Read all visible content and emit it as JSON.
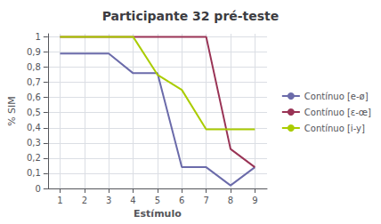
{
  "chart_data": {
    "type": "line",
    "title": "Participante 32 pré-teste",
    "xlabel": "Estímulo",
    "ylabel": "% SIM",
    "x": [
      1,
      2,
      3,
      4,
      5,
      6,
      7,
      8,
      9
    ],
    "series": [
      {
        "name": "Contínuo [e-ø]",
        "color": "#6b6baa",
        "values": [
          0.89,
          0.89,
          0.89,
          0.76,
          0.76,
          0.14,
          0.14,
          0.02,
          0.14
        ]
      },
      {
        "name": "Contínuo [ɛ-œ]",
        "color": "#993355",
        "values": [
          1.0,
          1.0,
          1.0,
          1.0,
          1.0,
          1.0,
          1.0,
          0.26,
          0.14
        ]
      },
      {
        "name": "Contínuo [i-y]",
        "color": "#aacc00",
        "values": [
          1.0,
          1.0,
          1.0,
          1.0,
          0.75,
          0.65,
          0.39,
          0.39,
          0.39
        ]
      }
    ],
    "xlim": [
      0.5,
      9.5
    ],
    "xticks": [
      1,
      2,
      3,
      4,
      5,
      6,
      7,
      8,
      9
    ],
    "ylim": [
      0,
      1.02
    ],
    "yticks": [
      0,
      {
        "value": 0.1,
        "label": "0,1"
      },
      {
        "value": 0.2,
        "label": "0,2"
      },
      {
        "value": 0.3,
        "label": "0,3"
      },
      {
        "value": 0.4,
        "label": "0,4"
      },
      {
        "value": 0.5,
        "label": "0,5"
      },
      {
        "value": 0.6,
        "label": "0,6"
      },
      {
        "value": 0.7,
        "label": "0,7"
      },
      {
        "value": 0.8,
        "label": "0,8"
      },
      {
        "value": 0.9,
        "label": "0,9"
      },
      1
    ],
    "grid": true,
    "legend": "right"
  }
}
